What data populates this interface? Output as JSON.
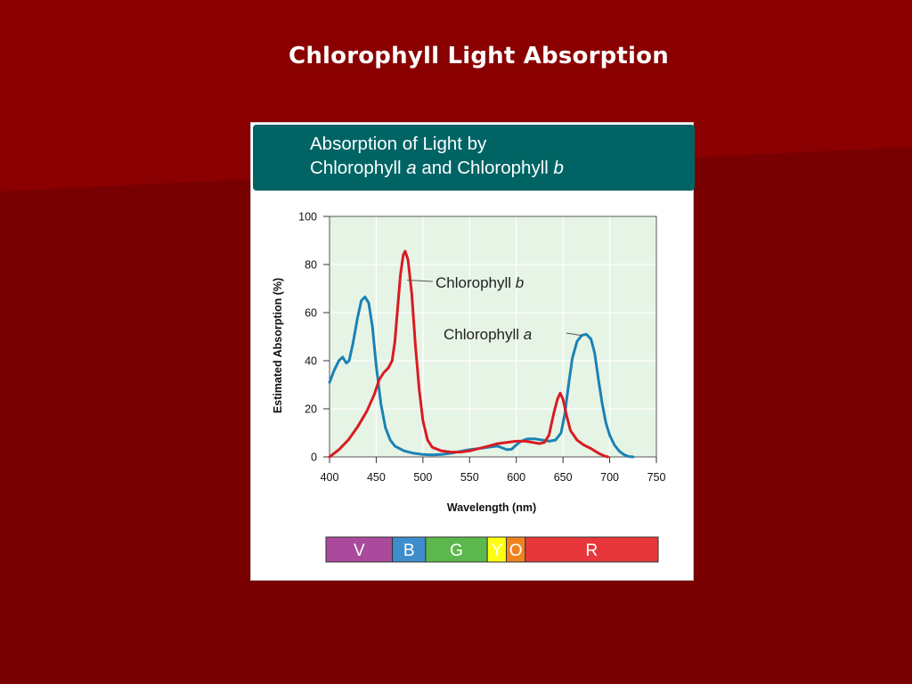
{
  "slide": {
    "title": "Chlorophyll Light Absorption"
  },
  "colors": {
    "background": "#780000",
    "background_band": "#8a0000",
    "header_band": "#006465",
    "plot_background": "#e6f4e6",
    "chlorophyll_a": "#1b82b4",
    "chlorophyll_b": "#d81c22"
  },
  "chart_data": {
    "type": "line",
    "title_line1": "Absorption of Light by",
    "title_line2_parts": [
      "Chlorophyll ",
      "a",
      " and Chlorophyll ",
      "b"
    ],
    "xlabel": "Wavelength (nm)",
    "ylabel": "Estimated Absorption (%)",
    "xlim": [
      400,
      750
    ],
    "ylim": [
      0,
      100
    ],
    "xticks": [
      400,
      450,
      500,
      550,
      600,
      650,
      700,
      750
    ],
    "yticks": [
      0,
      20,
      40,
      60,
      80,
      100
    ],
    "grid": true,
    "series": [
      {
        "name": "Chlorophyll a",
        "label_parts": [
          "Chlorophyll ",
          "a"
        ],
        "color": "#1b82b4",
        "points": [
          [
            400,
            31
          ],
          [
            405,
            36
          ],
          [
            410,
            40
          ],
          [
            414,
            41.5
          ],
          [
            418,
            39
          ],
          [
            421,
            40
          ],
          [
            425,
            47
          ],
          [
            430,
            58
          ],
          [
            434,
            65
          ],
          [
            438,
            66.5
          ],
          [
            442,
            64
          ],
          [
            446,
            54
          ],
          [
            450,
            38
          ],
          [
            455,
            22
          ],
          [
            460,
            12
          ],
          [
            465,
            7
          ],
          [
            470,
            4.5
          ],
          [
            480,
            2.5
          ],
          [
            490,
            1.5
          ],
          [
            500,
            1
          ],
          [
            510,
            0.8
          ],
          [
            520,
            1
          ],
          [
            530,
            1.5
          ],
          [
            540,
            2.3
          ],
          [
            550,
            3
          ],
          [
            560,
            3.5
          ],
          [
            570,
            4
          ],
          [
            580,
            4.5
          ],
          [
            590,
            3
          ],
          [
            595,
            3.2
          ],
          [
            600,
            5
          ],
          [
            605,
            6.5
          ],
          [
            612,
            7.5
          ],
          [
            620,
            7.5
          ],
          [
            628,
            7
          ],
          [
            635,
            6.5
          ],
          [
            642,
            7
          ],
          [
            648,
            10
          ],
          [
            652,
            18
          ],
          [
            656,
            30
          ],
          [
            660,
            41
          ],
          [
            665,
            48
          ],
          [
            670,
            50.5
          ],
          [
            675,
            51
          ],
          [
            680,
            49
          ],
          [
            684,
            43
          ],
          [
            688,
            32
          ],
          [
            692,
            22
          ],
          [
            696,
            14
          ],
          [
            700,
            9
          ],
          [
            705,
            5
          ],
          [
            710,
            2.5
          ],
          [
            715,
            1
          ],
          [
            720,
            0.2
          ],
          [
            725,
            0
          ]
        ]
      },
      {
        "name": "Chlorophyll b",
        "label_parts": [
          "Chlorophyll ",
          "b"
        ],
        "color": "#d81c22",
        "points": [
          [
            400,
            0
          ],
          [
            410,
            3
          ],
          [
            420,
            7
          ],
          [
            430,
            12.5
          ],
          [
            440,
            19
          ],
          [
            448,
            26
          ],
          [
            453,
            32
          ],
          [
            458,
            35
          ],
          [
            463,
            37
          ],
          [
            467,
            40
          ],
          [
            470,
            48
          ],
          [
            473,
            62
          ],
          [
            476,
            76
          ],
          [
            479,
            84
          ],
          [
            481,
            85.5
          ],
          [
            484,
            82
          ],
          [
            488,
            68
          ],
          [
            492,
            46
          ],
          [
            496,
            28
          ],
          [
            500,
            15
          ],
          [
            505,
            7
          ],
          [
            510,
            4
          ],
          [
            520,
            2.5
          ],
          [
            530,
            2
          ],
          [
            540,
            2
          ],
          [
            550,
            2.5
          ],
          [
            560,
            3.5
          ],
          [
            570,
            4.5
          ],
          [
            580,
            5.5
          ],
          [
            590,
            6
          ],
          [
            600,
            6.5
          ],
          [
            610,
            6.5
          ],
          [
            618,
            6
          ],
          [
            625,
            5.5
          ],
          [
            630,
            6
          ],
          [
            635,
            9
          ],
          [
            640,
            18
          ],
          [
            644,
            24
          ],
          [
            647,
            26.5
          ],
          [
            650,
            24
          ],
          [
            654,
            17
          ],
          [
            658,
            11
          ],
          [
            665,
            7
          ],
          [
            672,
            5
          ],
          [
            680,
            3.5
          ],
          [
            688,
            1.5
          ],
          [
            695,
            0.3
          ],
          [
            698,
            0
          ]
        ]
      }
    ],
    "spectrum": [
      {
        "label": "V",
        "from": 400,
        "to": 470,
        "color": "#a94a9c"
      },
      {
        "label": "B",
        "from": 470,
        "to": 505,
        "color": "#3e8ecd"
      },
      {
        "label": "G",
        "from": 505,
        "to": 570,
        "color": "#5cb84c"
      },
      {
        "label": "Y",
        "from": 570,
        "to": 590,
        "color": "#ffff10"
      },
      {
        "label": "O",
        "from": 590,
        "to": 610,
        "color": "#f08320"
      },
      {
        "label": "R",
        "from": 610,
        "to": 750,
        "color": "#e8373a"
      }
    ]
  }
}
